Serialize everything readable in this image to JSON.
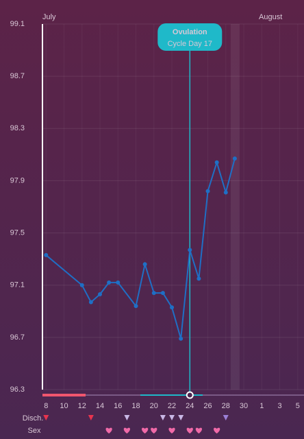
{
  "chart_data": {
    "type": "line",
    "annotations": {
      "month_start": "July",
      "month_next": "August",
      "ovulation_title": "Ovulation",
      "ovulation_subtitle": "Cycle Day 17"
    },
    "ovulation_x": 24,
    "highlight_x": 29,
    "x": [
      8,
      12,
      13,
      14,
      15,
      16,
      18,
      19,
      20,
      21,
      22,
      23,
      24,
      25,
      26,
      27,
      28,
      29
    ],
    "series": [
      {
        "color": "#1f6fc5",
        "values": [
          97.33,
          97.1,
          96.97,
          97.03,
          97.12,
          97.12,
          96.94,
          97.26,
          97.04,
          97.04,
          96.93,
          96.69,
          97.37,
          97.15,
          97.82,
          98.04,
          97.81,
          98.07
        ]
      }
    ],
    "xlim": [
      7.6,
      36.7
    ],
    "xticks": [
      8,
      10,
      12,
      14,
      16,
      18,
      20,
      22,
      24,
      26,
      28,
      30,
      {
        "value": 32,
        "label": "1"
      },
      {
        "value": 34,
        "label": "3"
      },
      {
        "value": 36,
        "label": "5"
      }
    ],
    "ylim": [
      96.3,
      99.1
    ],
    "yticks": [
      96.3,
      96.7,
      97.1,
      97.5,
      97.9,
      98.3,
      98.7,
      99.1
    ],
    "grid": true,
    "rows": {
      "discharge_label": "Disch.",
      "sex_label": "Sex"
    },
    "discharge_days": [
      8,
      13,
      17,
      21,
      22,
      23,
      28
    ],
    "sex_days": [
      15,
      17,
      19,
      20,
      22,
      24,
      25,
      27
    ]
  }
}
